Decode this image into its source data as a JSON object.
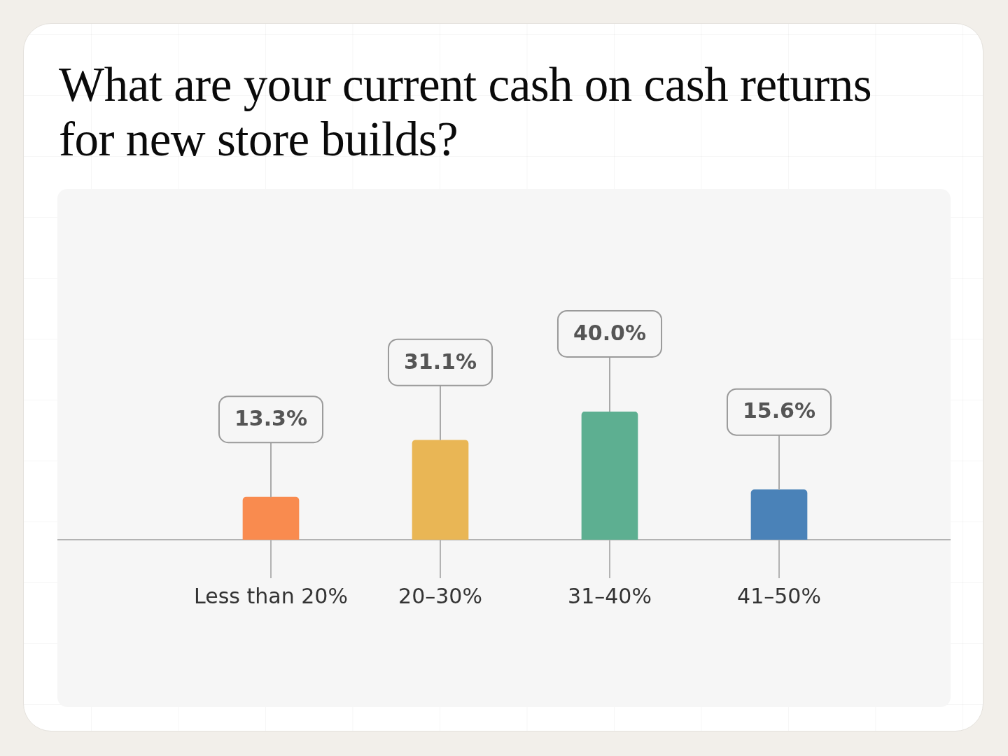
{
  "chart_data": {
    "type": "bar",
    "title": "What are your current cash on cash returns for new store builds?",
    "categories": [
      "Less than 20%",
      "20–30%",
      "31–40%",
      "41–50%"
    ],
    "values": [
      13.3,
      31.1,
      40.0,
      15.6
    ],
    "colors": [
      "#f98b4f",
      "#e9b655",
      "#5daf91",
      "#4a82b8"
    ],
    "value_labels": [
      "13.3%",
      "31.1%",
      "40.0%",
      "15.6%"
    ],
    "legend": false
  }
}
